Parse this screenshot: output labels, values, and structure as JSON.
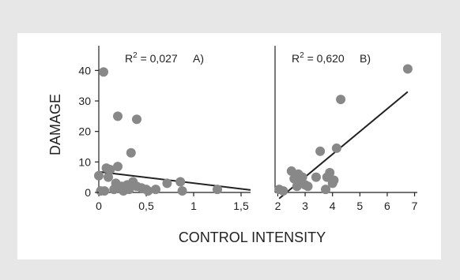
{
  "chart_data": {
    "type": "scatter",
    "ylabel": "DAMAGE",
    "xlabel": "CONTROL INTENSITY",
    "y_ticks": [
      "0",
      "10",
      "20",
      "30",
      "40"
    ],
    "panels": [
      {
        "label": "A)",
        "r2_text": "= 0,027",
        "xlim": [
          0,
          1.6
        ],
        "ylim": [
          0,
          45
        ],
        "x_ticks": [
          "0",
          "0,5",
          "1",
          "1,5"
        ],
        "x_tick_values": [
          0,
          0.5,
          1,
          1.5
        ],
        "trend": [
          [
            0,
            6.8
          ],
          [
            1.6,
            0.8
          ]
        ],
        "points": [
          [
            0.0,
            5.5
          ],
          [
            0.02,
            0.5
          ],
          [
            0.05,
            39.5
          ],
          [
            0.06,
            0.5
          ],
          [
            0.08,
            8
          ],
          [
            0.1,
            5
          ],
          [
            0.12,
            7.5
          ],
          [
            0.16,
            1
          ],
          [
            0.18,
            3
          ],
          [
            0.2,
            8.5
          ],
          [
            0.2,
            25
          ],
          [
            0.22,
            1.5
          ],
          [
            0.24,
            2
          ],
          [
            0.26,
            0.5
          ],
          [
            0.3,
            2.5
          ],
          [
            0.32,
            1
          ],
          [
            0.34,
            13
          ],
          [
            0.36,
            3.5
          ],
          [
            0.4,
            24
          ],
          [
            0.4,
            2
          ],
          [
            0.45,
            1.5
          ],
          [
            0.5,
            1
          ],
          [
            0.52,
            0.5
          ],
          [
            0.6,
            1
          ],
          [
            0.72,
            3
          ],
          [
            0.86,
            3.5
          ],
          [
            0.88,
            0.5
          ],
          [
            1.25,
            1
          ]
        ]
      },
      {
        "label": "B)",
        "r2_text": "= 0,620",
        "xlim": [
          1.9,
          7.1
        ],
        "ylim": [
          0,
          45
        ],
        "x_ticks": [
          "2",
          "3",
          "4",
          "5",
          "6",
          "7"
        ],
        "x_tick_values": [
          2,
          3,
          4,
          5,
          6,
          7
        ],
        "trend": [
          [
            2.05,
            -2
          ],
          [
            6.75,
            33
          ]
        ],
        "points": [
          [
            2.05,
            1
          ],
          [
            2.2,
            0.5
          ],
          [
            2.5,
            7
          ],
          [
            2.6,
            4.5
          ],
          [
            2.7,
            2
          ],
          [
            2.75,
            6
          ],
          [
            2.85,
            3.5
          ],
          [
            2.9,
            5
          ],
          [
            3.0,
            2.5
          ],
          [
            3.1,
            2
          ],
          [
            3.4,
            5
          ],
          [
            3.55,
            13.5
          ],
          [
            3.75,
            1
          ],
          [
            3.8,
            5
          ],
          [
            3.9,
            6.5
          ],
          [
            4.0,
            3
          ],
          [
            4.05,
            4
          ],
          [
            4.15,
            14.5
          ],
          [
            4.3,
            30.5
          ],
          [
            6.75,
            40.5
          ]
        ]
      }
    ]
  }
}
